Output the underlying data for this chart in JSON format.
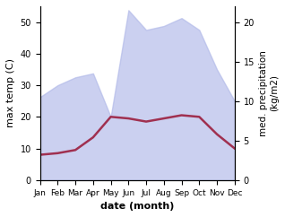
{
  "months": [
    "Jan",
    "Feb",
    "Mar",
    "Apr",
    "May",
    "Jun",
    "Jul",
    "Aug",
    "Sep",
    "Oct",
    "Nov",
    "Dec"
  ],
  "month_nums": [
    1,
    2,
    3,
    4,
    5,
    6,
    7,
    8,
    9,
    10,
    11,
    12
  ],
  "precipitation": [
    10.5,
    12.0,
    13.0,
    13.5,
    8.0,
    21.5,
    19.0,
    19.5,
    20.5,
    19.0,
    14.0,
    10.0
  ],
  "temperature": [
    8.0,
    8.5,
    9.5,
    13.5,
    20.0,
    19.5,
    18.5,
    19.5,
    20.5,
    20.0,
    14.5,
    10.0
  ],
  "temp_ylim": [
    0,
    55
  ],
  "precip_ylim": [
    0,
    22
  ],
  "temp_yticks": [
    0,
    10,
    20,
    30,
    40,
    50
  ],
  "precip_yticks": [
    0,
    5,
    10,
    15,
    20
  ],
  "fill_color": "#b0b8e8",
  "fill_alpha": 0.65,
  "line_color": "#a03050",
  "line_width": 1.8,
  "xlabel": "date (month)",
  "ylabel_left": "max temp (C)",
  "ylabel_right": "med. precipitation\n(kg/m2)"
}
